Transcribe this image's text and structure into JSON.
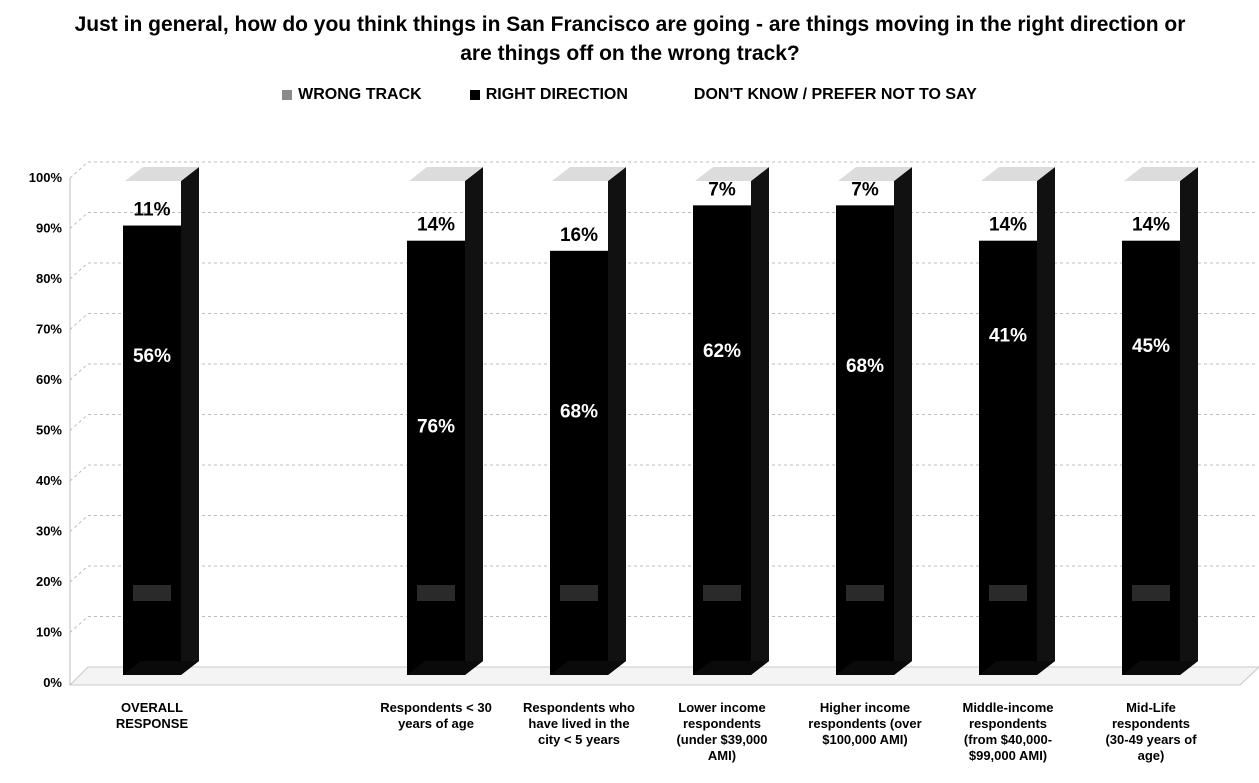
{
  "chart_data": {
    "type": "bar",
    "stacked": true,
    "title": "Just in general, how do you think things in San Francisco are going - are things moving in the right direction or are things off on the wrong track?",
    "legend_position": "top",
    "legend": [
      {
        "name": "WRONG TRACK",
        "color": "#8a8a8a"
      },
      {
        "name": "RIGHT DIRECTION",
        "color": "#000000"
      },
      {
        "name": "DON'T KNOW / PREFER NOT TO SAY",
        "color": "#ffffff"
      }
    ],
    "ylim": [
      0,
      100
    ],
    "yticks": [
      "0%",
      "10%",
      "20%",
      "30%",
      "40%",
      "50%",
      "60%",
      "70%",
      "80%",
      "90%",
      "100%"
    ],
    "grid": true,
    "categories": [
      {
        "lines": [
          "OVERALL",
          "RESPONSE"
        ]
      },
      {
        "lines": [
          "Respondents < 30",
          "years of age"
        ]
      },
      {
        "lines": [
          "Respondents who",
          "have lived in the",
          "city < 5 years"
        ]
      },
      {
        "lines": [
          "Lower income",
          "respondents",
          "(under $39,000",
          "AMI)"
        ]
      },
      {
        "lines": [
          "Higher income",
          "respondents (over",
          "$100,000 AMI)"
        ]
      },
      {
        "lines": [
          "Middle-income",
          "respondents",
          "(from $40,000-",
          "$99,000 AMI)"
        ]
      },
      {
        "lines": [
          "Mid-Life",
          "respondents",
          "(30-49 years of",
          "age)"
        ]
      }
    ],
    "bar_top_values": [
      89,
      86,
      84,
      93,
      93,
      86,
      86
    ],
    "right_direction_labels": [
      "56%",
      "76%",
      "68%",
      "62%",
      "68%",
      "41%",
      "45%"
    ],
    "right_direction_label_levels": [
      62,
      48,
      51,
      63,
      60,
      66,
      64
    ],
    "dont_know_labels": [
      "11%",
      "14%",
      "16%",
      "7%",
      "7%",
      "14%",
      "14%"
    ]
  }
}
